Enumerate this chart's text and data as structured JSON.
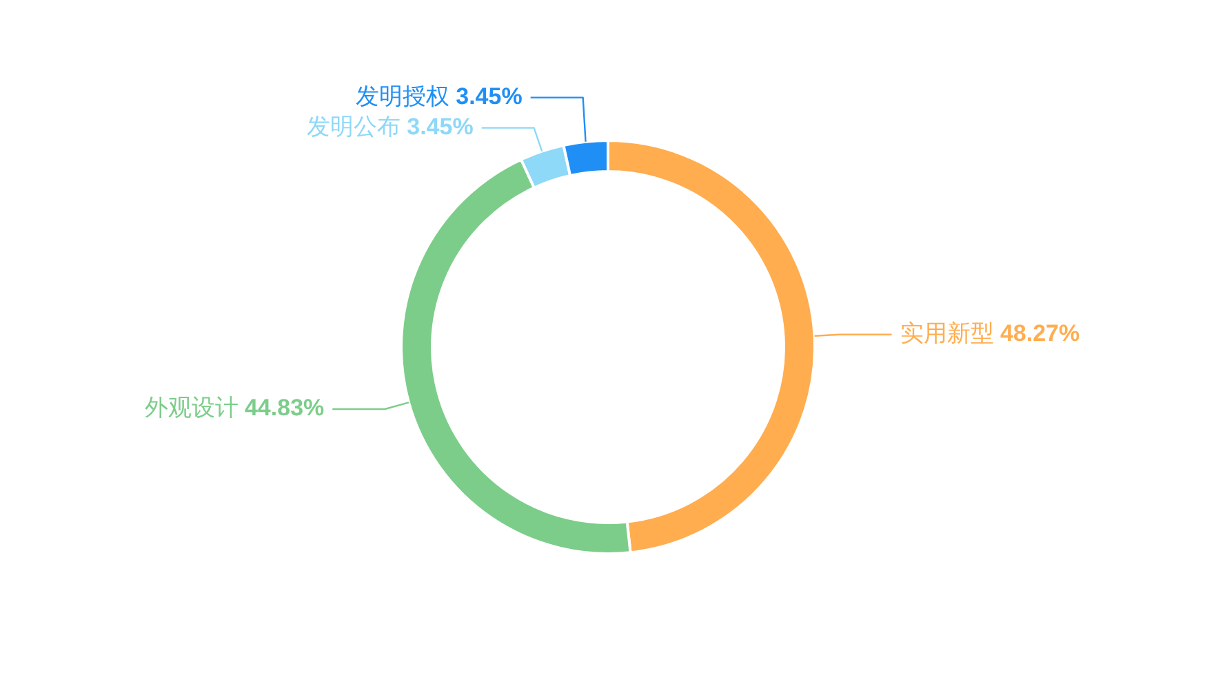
{
  "chart_data": {
    "type": "donut",
    "categories": [
      "实用新型",
      "外观设计",
      "发明公布",
      "发明授权"
    ],
    "values": [
      48.27,
      44.83,
      3.45,
      3.45
    ],
    "value_labels": [
      "48.27%",
      "44.83%",
      "3.45%",
      "3.45%"
    ],
    "colors": [
      "#ffad4f",
      "#7ccd8a",
      "#8ed8f8",
      "#1f8ff5"
    ],
    "legend": false
  }
}
